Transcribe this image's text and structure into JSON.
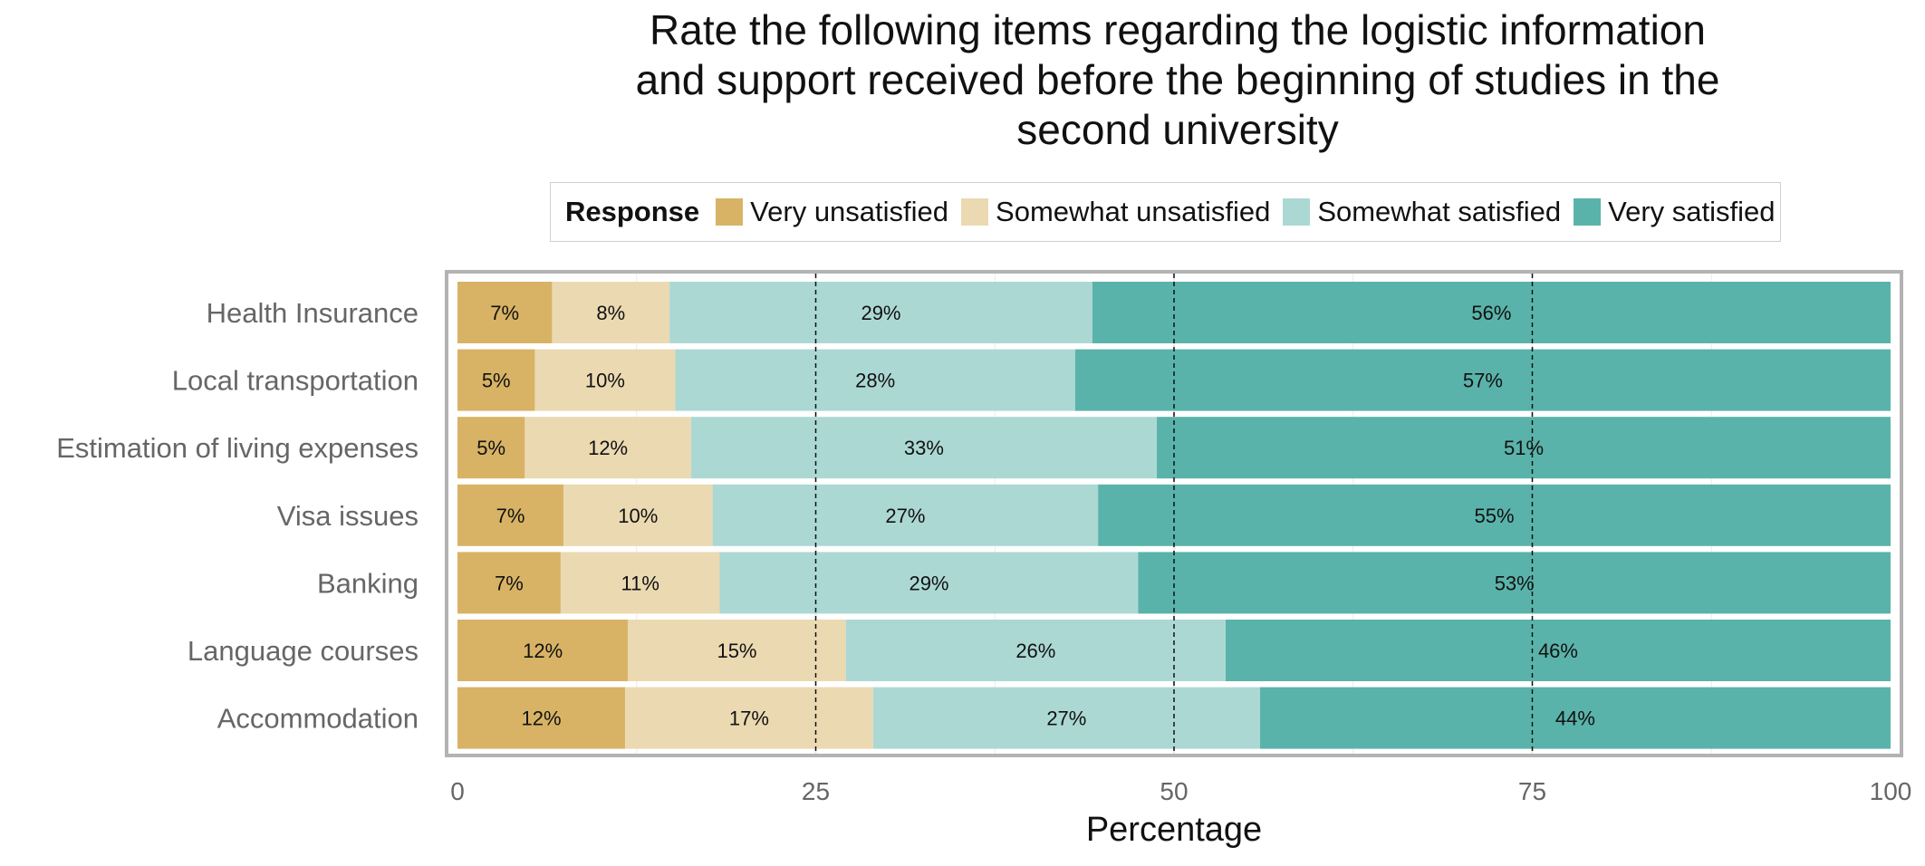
{
  "chart_data": {
    "type": "bar",
    "orientation": "horizontal",
    "stacked": true,
    "title_lines": [
      "Rate the following items regarding the logistic information",
      "and support received before the beginning of studies in the",
      "second university"
    ],
    "xlabel": "Percentage",
    "ylabel": "",
    "xlim": [
      0,
      100
    ],
    "xticks": [
      0,
      25,
      50,
      75,
      100
    ],
    "reference_lines": [
      25,
      50,
      75
    ],
    "legend_title": "Response",
    "legend_position": "top",
    "categories": [
      "Health Insurance",
      "Local transportation",
      "Estimation of living expenses",
      "Visa issues",
      "Banking",
      "Language courses",
      "Accommodation"
    ],
    "series": [
      {
        "name": "Very unsatisfied",
        "color": "#d8b365",
        "values": [
          6.6,
          5.4,
          4.7,
          7.4,
          7.2,
          11.9,
          11.7
        ],
        "labels": [
          "7%",
          "5%",
          "5%",
          "7%",
          "7%",
          "12%",
          "12%"
        ]
      },
      {
        "name": "Somewhat unsatisfied",
        "color": "#ebd9b2",
        "values": [
          8.2,
          9.8,
          11.6,
          10.4,
          11.1,
          15.2,
          17.3
        ],
        "labels": [
          "8%",
          "10%",
          "12%",
          "10%",
          "11%",
          "15%",
          "17%"
        ]
      },
      {
        "name": "Somewhat satisfied",
        "color": "#acd8d4",
        "values": [
          29.5,
          27.9,
          32.5,
          26.9,
          29.2,
          26.5,
          27.0
        ],
        "labels": [
          "29%",
          "28%",
          "33%",
          "27%",
          "29%",
          "26%",
          "27%"
        ]
      },
      {
        "name": "Very satisfied",
        "color": "#5ab3aa",
        "values": [
          55.7,
          56.9,
          51.2,
          55.3,
          52.5,
          46.4,
          44.0
        ],
        "labels": [
          "56%",
          "57%",
          "51%",
          "55%",
          "53%",
          "46%",
          "44%"
        ]
      }
    ]
  }
}
